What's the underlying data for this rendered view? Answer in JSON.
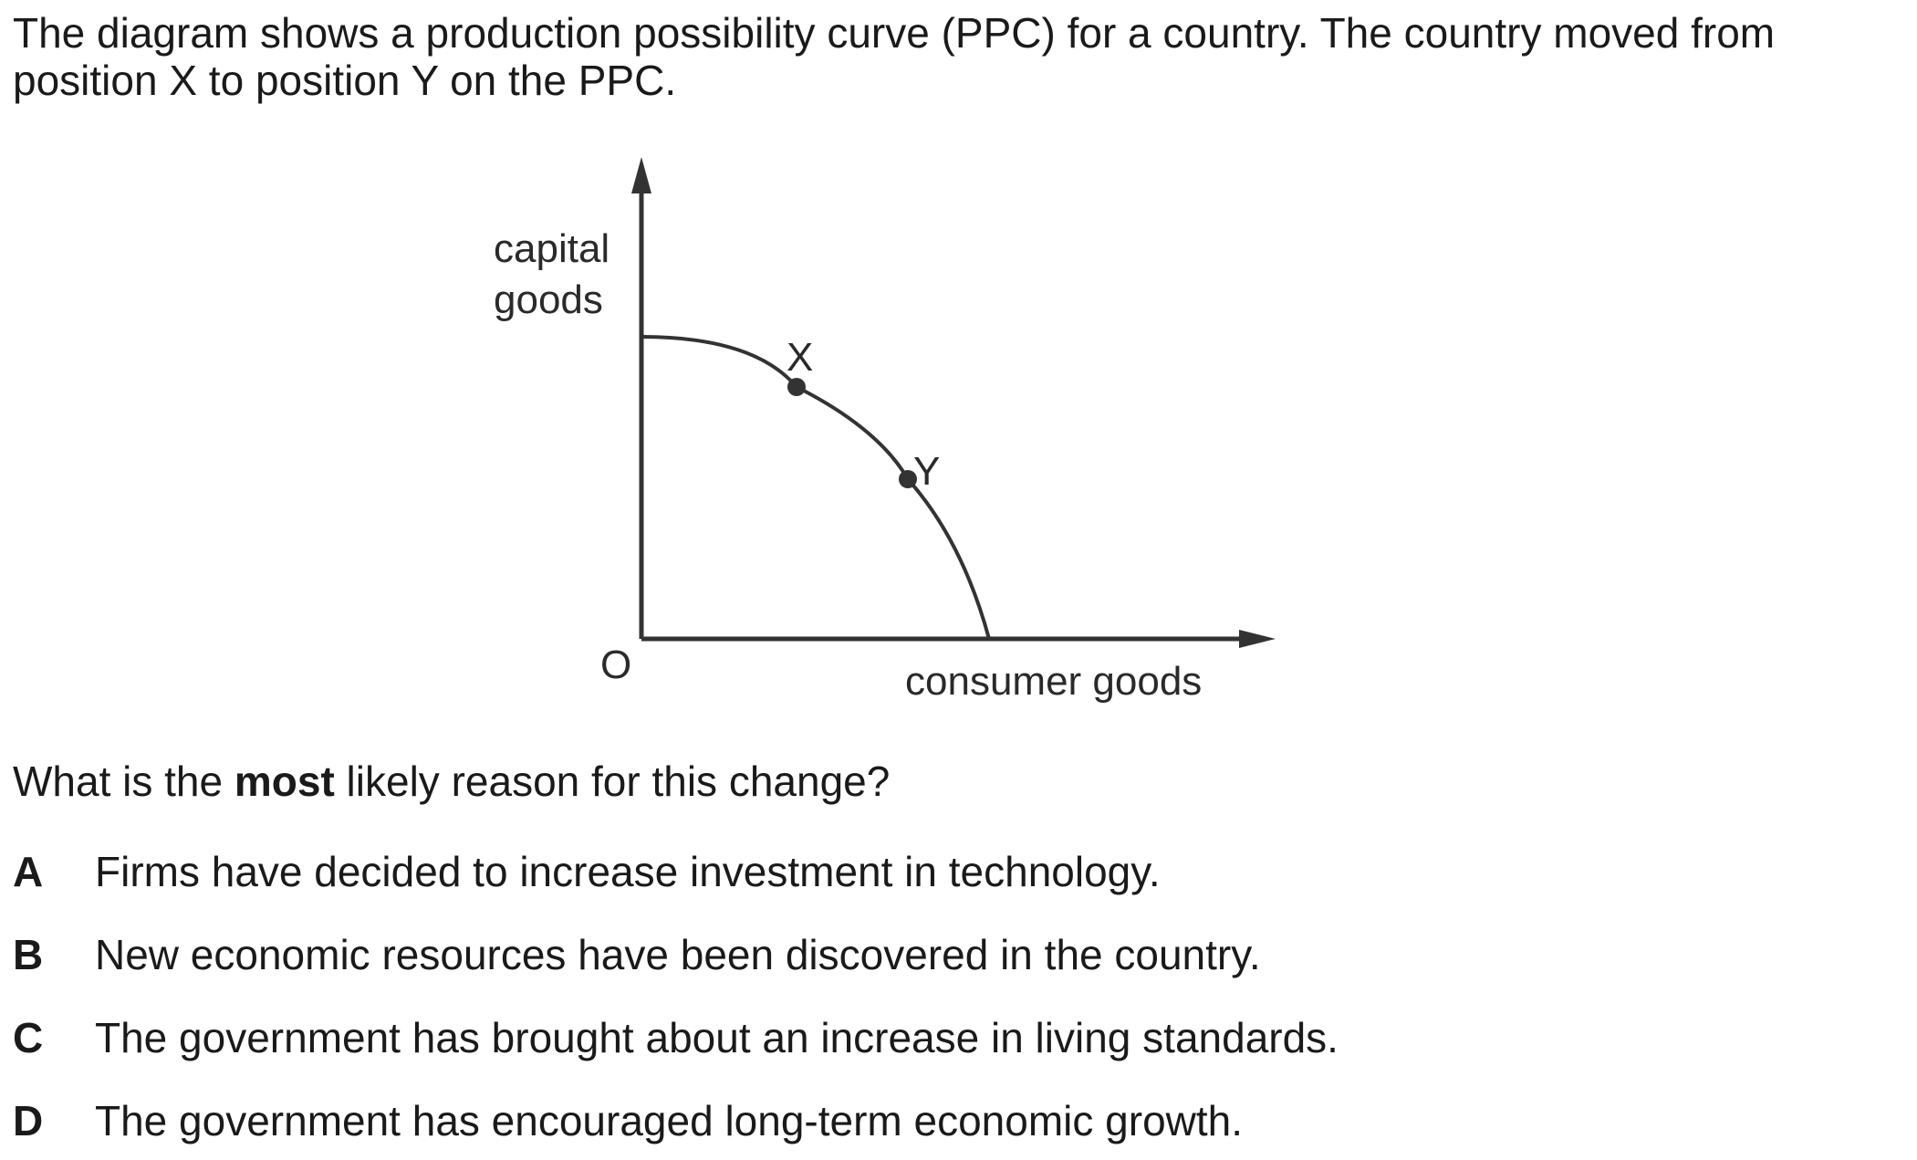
{
  "intro_text": "The diagram shows a production possibility curve (PPC) for a country. The country moved from position X to position Y on the PPC.",
  "diagram": {
    "y_axis_label_line1": "capital",
    "y_axis_label_line2": "goods",
    "x_axis_label": "consumer goods",
    "origin_label": "O",
    "point_x_label": "X",
    "point_y_label": "Y"
  },
  "question": {
    "prefix": "What is the ",
    "emphasis": "most",
    "suffix": " likely reason for this change?"
  },
  "options": [
    {
      "letter": "A",
      "text": "Firms have decided to increase investment in technology."
    },
    {
      "letter": "B",
      "text": "New economic resources have been discovered in the country."
    },
    {
      "letter": "C",
      "text": "The government has brought about an increase in living standards."
    },
    {
      "letter": "D",
      "text": "The government has encouraged long-term economic growth."
    }
  ]
}
